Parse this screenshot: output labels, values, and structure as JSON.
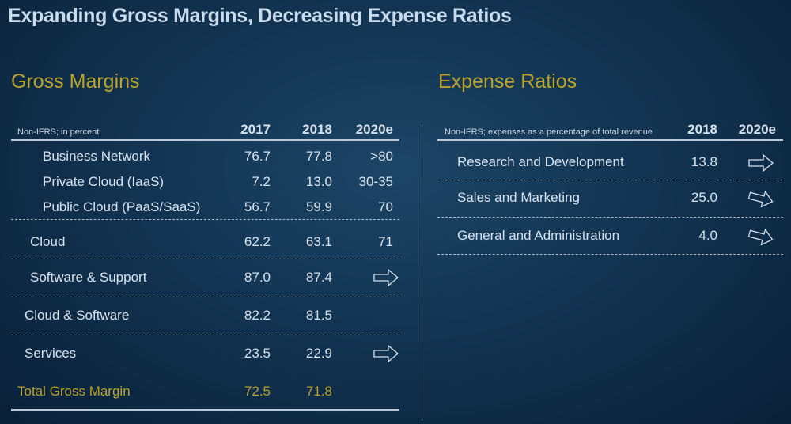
{
  "title": "Expanding Gross Margins, Decreasing Expense Ratios",
  "gross": {
    "heading": "Gross Margins",
    "note": "Non-IFRS; in percent",
    "columns": [
      "2017",
      "2018",
      "2020e"
    ],
    "rows": [
      {
        "label": "Business Network",
        "v2017": "76.7",
        "v2018": "77.8",
        "v2020e": ">80"
      },
      {
        "label": "Private Cloud (IaaS)",
        "v2017": "7.2",
        "v2018": "13.0",
        "v2020e": "30-35"
      },
      {
        "label": "Public Cloud (PaaS/SaaS)",
        "v2017": "56.7",
        "v2018": "59.9",
        "v2020e": "70"
      },
      {
        "label": "Cloud",
        "v2017": "62.2",
        "v2018": "63.1",
        "v2020e": "71"
      },
      {
        "label": "Software & Support",
        "v2017": "87.0",
        "v2018": "87.4",
        "v2020e_icon": "arrow-right-icon"
      },
      {
        "label": "Cloud & Software",
        "v2017": "82.2",
        "v2018": "81.5"
      },
      {
        "label": "Services",
        "v2017": "23.5",
        "v2018": "22.9",
        "v2020e_icon": "arrow-right-icon"
      },
      {
        "label": "Total Gross Margin",
        "v2017": "72.5",
        "v2018": "71.8"
      }
    ]
  },
  "expense": {
    "heading": "Expense Ratios",
    "note": "Non-IFRS; expenses as a percentage of total revenue",
    "columns": [
      "2018",
      "2020e"
    ],
    "rows": [
      {
        "label": "Research and Development",
        "v2018": "13.8",
        "v2020e_icon": "arrow-right-icon"
      },
      {
        "label": "Sales and Marketing",
        "v2018": "25.0",
        "v2020e_icon": "arrow-down-right-icon"
      },
      {
        "label": "General and Administration",
        "v2018": "4.0",
        "v2020e_icon": "arrow-down-right-icon"
      }
    ]
  },
  "colors": {
    "accent": "#b9a32a",
    "text": "#d6e2ee"
  }
}
